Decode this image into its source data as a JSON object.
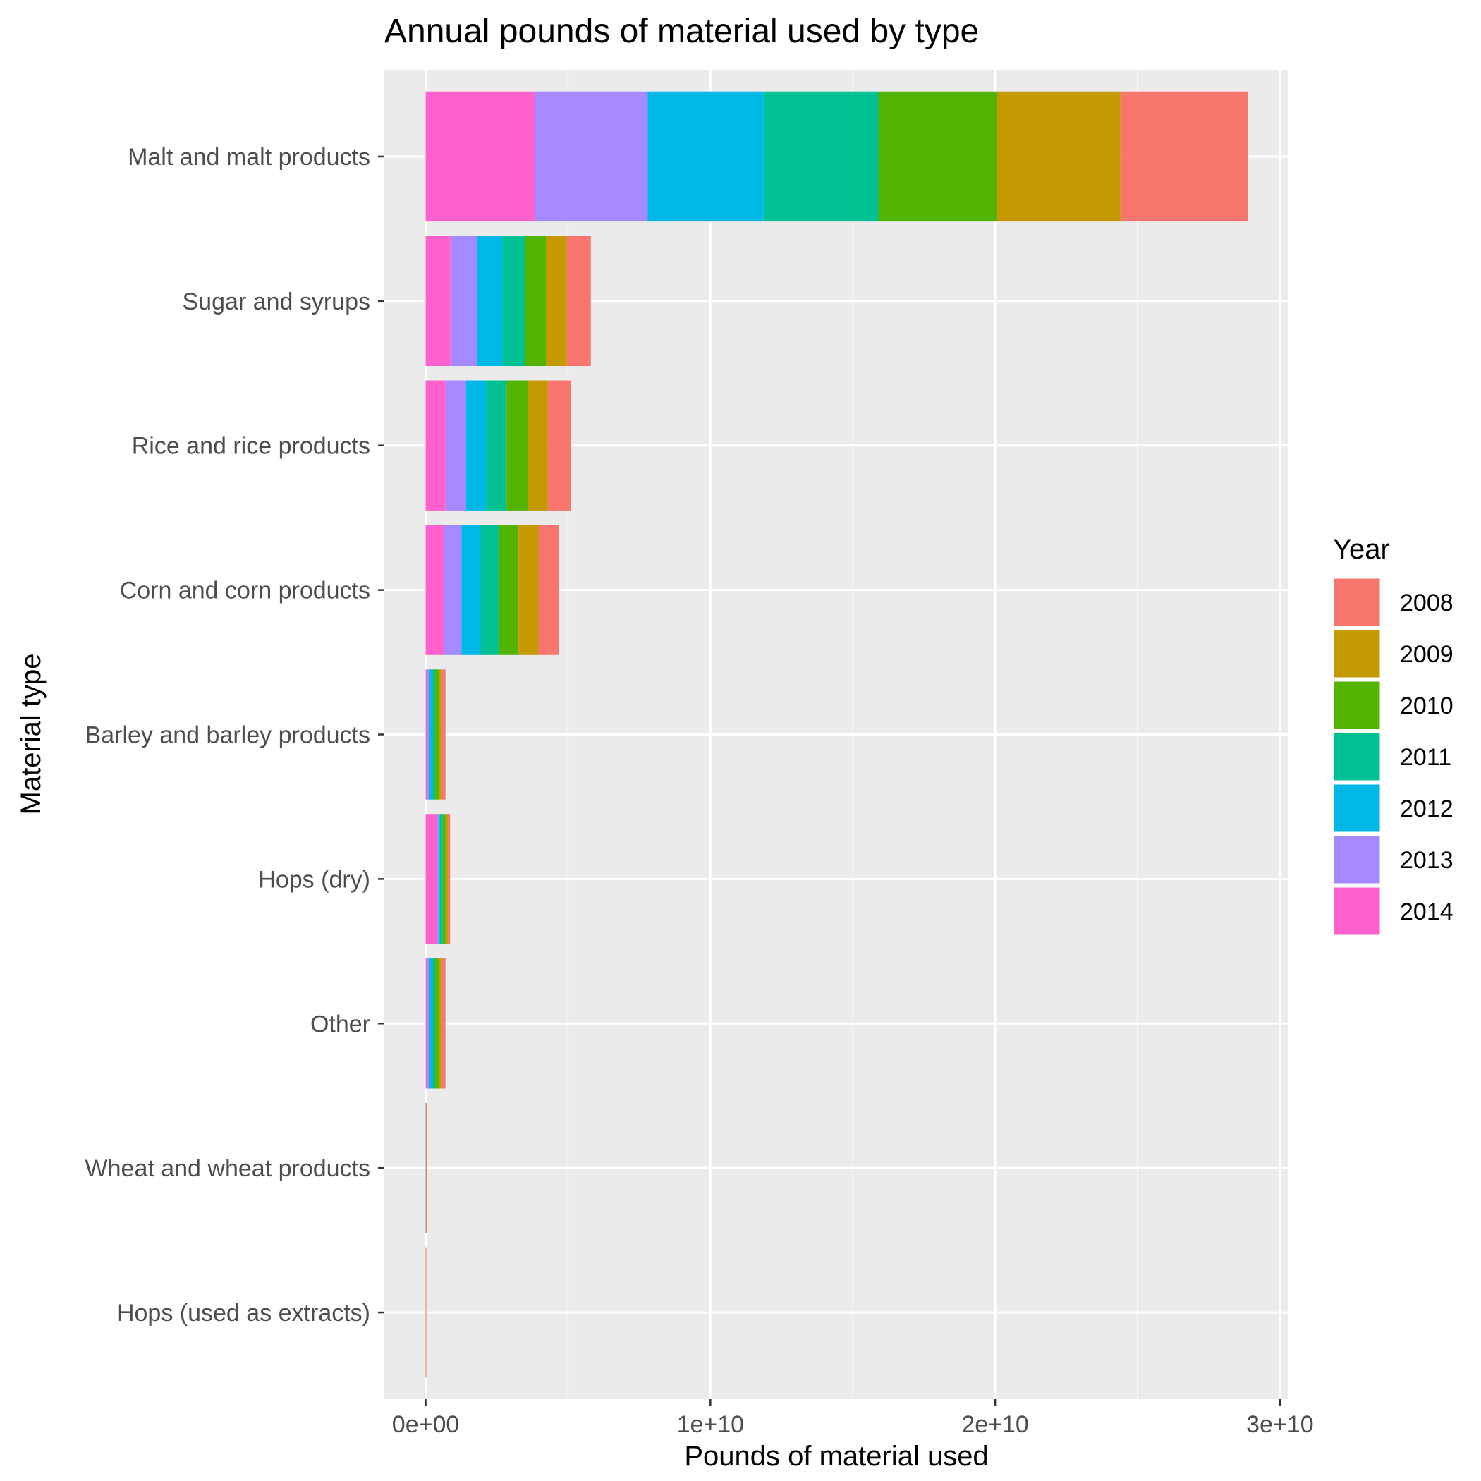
{
  "chart_data": {
    "type": "bar",
    "orientation": "horizontal",
    "stacked": true,
    "title": "Annual pounds of material used by type",
    "xlabel": "Pounds of material used",
    "ylabel": "Material type",
    "xlim": [
      -1450000000.0,
      30300000000.0
    ],
    "x_ticks": [
      {
        "value": 0,
        "label": "0e+00"
      },
      {
        "value": 10000000000.0,
        "label": "1e+10"
      },
      {
        "value": 20000000000.0,
        "label": "2e+10"
      },
      {
        "value": 30000000000.0,
        "label": "3e+10"
      }
    ],
    "categories": [
      "Malt and malt products",
      "Sugar and syrups",
      "Rice and rice products",
      "Corn and corn products",
      "Barley and barley products",
      "Hops (dry)",
      "Other",
      "Wheat and wheat products",
      "Hops (used as extracts)"
    ],
    "legend": {
      "title": "Year",
      "position": "right"
    },
    "grid": true,
    "series": [
      {
        "name": "2014",
        "color": "#FF61CC",
        "values": [
          3830000000.0,
          870000000.0,
          700000000.0,
          630000000.0,
          36000000.0,
          400000000.0,
          35000000.0,
          3000000.0,
          1000000.0
        ]
      },
      {
        "name": "2013",
        "color": "#A58AFF",
        "values": [
          3970000000.0,
          950000000.0,
          720000000.0,
          630000000.0,
          100000000.0,
          50000000.0,
          100000000.0,
          3000000.0,
          1000000.0
        ]
      },
      {
        "name": "2012",
        "color": "#00B8E7",
        "values": [
          4070000000.0,
          880000000.0,
          700000000.0,
          670000000.0,
          100000000.0,
          50000000.0,
          100000000.0,
          3000000.0,
          1000000.0
        ]
      },
      {
        "name": "2011",
        "color": "#00C094",
        "values": [
          4030000000.0,
          780000000.0,
          720000000.0,
          630000000.0,
          100000000.0,
          100000000.0,
          100000000.0,
          3000000.0,
          1000000.0
        ]
      },
      {
        "name": "2010",
        "color": "#53B400",
        "values": [
          4170000000.0,
          750000000.0,
          750000000.0,
          700000000.0,
          120000000.0,
          100000000.0,
          120000000.0,
          3000000.0,
          1000000.0
        ]
      },
      {
        "name": "2009",
        "color": "#C49A00",
        "values": [
          4330000000.0,
          730000000.0,
          700000000.0,
          700000000.0,
          120000000.0,
          80000000.0,
          120000000.0,
          3000000.0,
          1000000.0
        ]
      },
      {
        "name": "2008",
        "color": "#F8766D",
        "values": [
          4470000000.0,
          840000000.0,
          820000000.0,
          730000000.0,
          120000000.0,
          80000000.0,
          120000000.0,
          3000000.0,
          1000000.0
        ]
      }
    ],
    "legend_order": [
      "2008",
      "2009",
      "2010",
      "2011",
      "2012",
      "2013",
      "2014"
    ]
  }
}
